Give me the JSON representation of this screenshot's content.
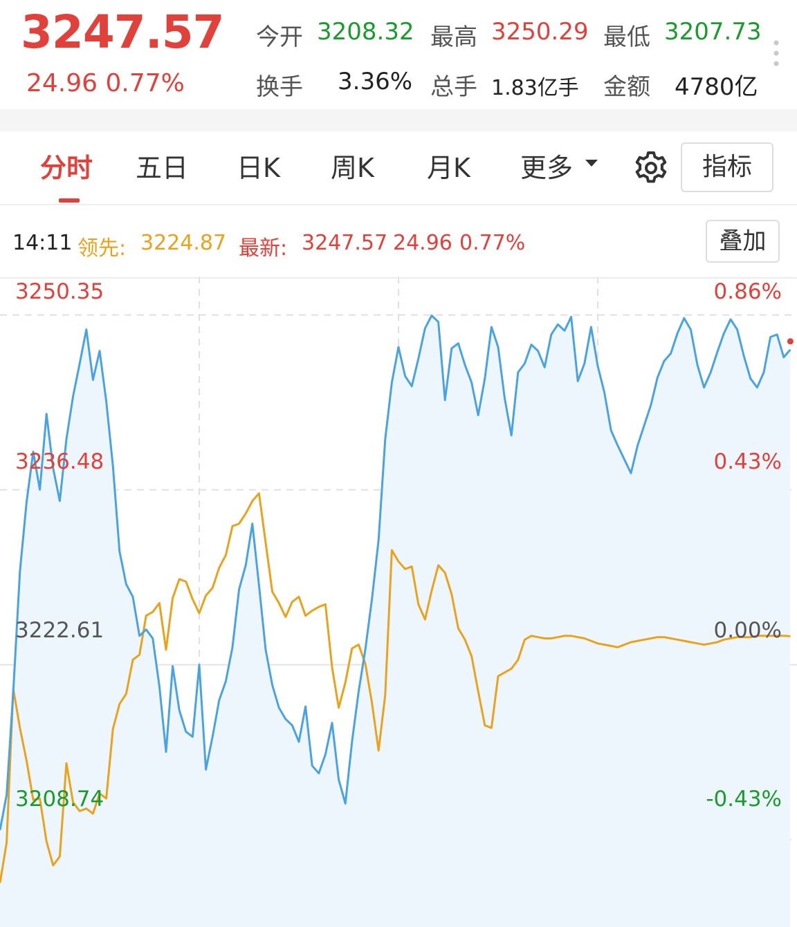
{
  "quote": {
    "price": "3247.57",
    "change": "24.96",
    "change_pct": "0.77%",
    "open_label": "今开",
    "open": "3208.32",
    "high_label": "最高",
    "high": "3250.29",
    "low_label": "最低",
    "low": "3207.73",
    "turnover_label": "换手",
    "turnover": "3.36%",
    "volume_label": "总手",
    "volume": "1.83亿手",
    "amount_label": "金额",
    "amount": "4780亿"
  },
  "tabs": {
    "items": [
      "分时",
      "五日",
      "日K",
      "周K",
      "月K",
      "更多"
    ],
    "active": "分时",
    "indicator_button": "指标"
  },
  "info_bar": {
    "time": "14:11",
    "lead_label": "领先:",
    "lead_value": "3224.87",
    "latest_label": "最新:",
    "latest_value": "3247.57",
    "latest_change": "24.96",
    "latest_pct": "0.77%",
    "overlay_button": "叠加"
  },
  "colors": {
    "up": "#e0413a",
    "down": "#1b9a2d",
    "price_line": "#4aa3e0",
    "lead_line": "#e8a21c",
    "area_fill": "#eef6fd"
  },
  "icons": [
    "gear-icon",
    "more-dots-icon",
    "caret-down-icon"
  ],
  "chart_data": {
    "type": "line",
    "y_ticks_left": [
      "3250.35",
      "3236.48",
      "3222.61",
      "3208.74"
    ],
    "y_ticks_right": [
      "0.86%",
      "0.43%",
      "0.00%",
      "-0.43%"
    ],
    "ylim": [
      3201.81,
      3253.4
    ],
    "x_range_minutes": [
      0,
      240
    ],
    "grid": true,
    "series": [
      {
        "name": "最新",
        "color": "#4aa3e0",
        "filled": true,
        "x": [
          0,
          2,
          4,
          6,
          8,
          10,
          12,
          14,
          16,
          18,
          20,
          22,
          24,
          26,
          28,
          30,
          32,
          34,
          36,
          38,
          40,
          42,
          44,
          46,
          48,
          50,
          52,
          54,
          56,
          58,
          60,
          62,
          64,
          66,
          68,
          70,
          72,
          74,
          76,
          78,
          80,
          82,
          84,
          86,
          88,
          90,
          92,
          94,
          96,
          98,
          100,
          102,
          104,
          106,
          108,
          110,
          112,
          114,
          116,
          118,
          120,
          122,
          124,
          126,
          128,
          130,
          132,
          134,
          136,
          138,
          140,
          142,
          144,
          146,
          148,
          150,
          152,
          154,
          156,
          158,
          160,
          162,
          164,
          166,
          168,
          170,
          172,
          174,
          176,
          178,
          180,
          182,
          184,
          186,
          188,
          190,
          192,
          194,
          196,
          198,
          200,
          202,
          204,
          206,
          208,
          210,
          212,
          214,
          216,
          218,
          220,
          222,
          224,
          226,
          228,
          230,
          232,
          234,
          236,
          238
        ],
        "values": [
          3209.5,
          3212.3,
          3220.5,
          3230.0,
          3235.5,
          3239.5,
          3236.5,
          3242.5,
          3238.2,
          3235.6,
          3240.5,
          3243.9,
          3246.5,
          3249.2,
          3245.2,
          3247.5,
          3243.5,
          3238.4,
          3231.6,
          3229.0,
          3228.0,
          3224.9,
          3225.4,
          3224.7,
          3220.9,
          3215.7,
          3222.5,
          3219.0,
          3217.3,
          3216.9,
          3222.6,
          3214.3,
          3216.9,
          3219.8,
          3221.3,
          3224.0,
          3228.6,
          3230.5,
          3233.8,
          3228.9,
          3223.8,
          3221.0,
          3219.2,
          3218.3,
          3217.8,
          3216.5,
          3219.3,
          3214.6,
          3214.0,
          3215.5,
          3218.0,
          3213.5,
          3211.6,
          3216.5,
          3220.5,
          3223.8,
          3227.8,
          3232.5,
          3240.5,
          3245.0,
          3247.8,
          3245.5,
          3244.7,
          3246.9,
          3249.3,
          3250.3,
          3249.8,
          3243.6,
          3247.7,
          3248.1,
          3246.4,
          3245.0,
          3242.4,
          3245.3,
          3249.4,
          3247.8,
          3243.7,
          3240.8,
          3245.8,
          3246.5,
          3248.0,
          3247.5,
          3246.2,
          3248.8,
          3249.6,
          3249.1,
          3250.2,
          3245.1,
          3246.5,
          3249.4,
          3246.3,
          3244.2,
          3241.2,
          3240.0,
          3238.9,
          3237.8,
          3240.0,
          3241.6,
          3243.2,
          3245.4,
          3246.7,
          3247.3,
          3248.9,
          3250.1,
          3249.2,
          3246.4,
          3244.6,
          3245.8,
          3247.4,
          3248.9,
          3250.0,
          3249.2,
          3247.1,
          3245.3,
          3244.6,
          3245.8,
          3248.6,
          3248.8,
          3247.0,
          3247.6
        ]
      },
      {
        "name": "领先",
        "color": "#e8a21c",
        "filled": false,
        "x": [
          0,
          2,
          4,
          6,
          8,
          10,
          12,
          14,
          16,
          18,
          20,
          22,
          24,
          26,
          28,
          30,
          32,
          34,
          36,
          38,
          40,
          42,
          44,
          46,
          48,
          50,
          52,
          54,
          56,
          58,
          60,
          62,
          64,
          66,
          68,
          70,
          72,
          74,
          76,
          78,
          80,
          82,
          84,
          86,
          88,
          90,
          92,
          94,
          96,
          98,
          100,
          102,
          104,
          106,
          108,
          110,
          112,
          114,
          116,
          118,
          120,
          122,
          124,
          126,
          128,
          130,
          132,
          134,
          136,
          138,
          140,
          142,
          144,
          146,
          148,
          150,
          152,
          154,
          156,
          158,
          160,
          162,
          164,
          166,
          168,
          170,
          172,
          174,
          176,
          178,
          180,
          182,
          184,
          186,
          188,
          190,
          192,
          194,
          196,
          198,
          200,
          202,
          204,
          206,
          208,
          210,
          212,
          214,
          216,
          218,
          220,
          222,
          224,
          226,
          228,
          230,
          232,
          234,
          236,
          238
        ],
        "values": [
          3205.3,
          3208.5,
          3220.7,
          3217.6,
          3215.0,
          3211.9,
          3212.0,
          3208.6,
          3206.7,
          3207.4,
          3214.8,
          3211.7,
          3211.0,
          3211.2,
          3210.8,
          3212.4,
          3212.0,
          3217.5,
          3219.5,
          3220.3,
          3223.0,
          3223.4,
          3226.5,
          3226.8,
          3227.5,
          3223.8,
          3227.9,
          3229.4,
          3229.2,
          3227.8,
          3226.7,
          3228.1,
          3228.7,
          3230.3,
          3231.3,
          3233.6,
          3233.8,
          3234.6,
          3235.6,
          3236.2,
          3232.3,
          3228.4,
          3227.5,
          3226.4,
          3227.6,
          3228.0,
          3226.5,
          3226.9,
          3227.2,
          3227.4,
          3222.4,
          3219.2,
          3221.2,
          3223.9,
          3224.2,
          3222.7,
          3219.6,
          3215.8,
          3220.2,
          3231.7,
          3230.8,
          3230.2,
          3230.4,
          3227.4,
          3226.2,
          3228.5,
          3230.5,
          3229.9,
          3228.2,
          3225.5,
          3224.6,
          3223.3,
          3220.5,
          3217.8,
          3217.6,
          3221.7,
          3222.0,
          3222.3,
          3223.0,
          3224.6,
          3224.9,
          3224.8,
          3224.7,
          3224.7,
          3224.8,
          3224.9,
          3224.9,
          3224.8,
          3224.7,
          3224.5,
          3224.3,
          3224.2,
          3224.1,
          3224.0,
          3224.2,
          3224.4,
          3224.5,
          3224.6,
          3224.7,
          3224.8,
          3224.8,
          3224.7,
          3224.6,
          3224.5,
          3224.4,
          3224.3,
          3224.2,
          3224.3,
          3224.4,
          3224.6,
          3224.7,
          3224.8,
          3224.8,
          3224.8,
          3224.9,
          3224.9,
          3224.9,
          3224.9,
          3224.9,
          3224.87
        ]
      }
    ]
  }
}
